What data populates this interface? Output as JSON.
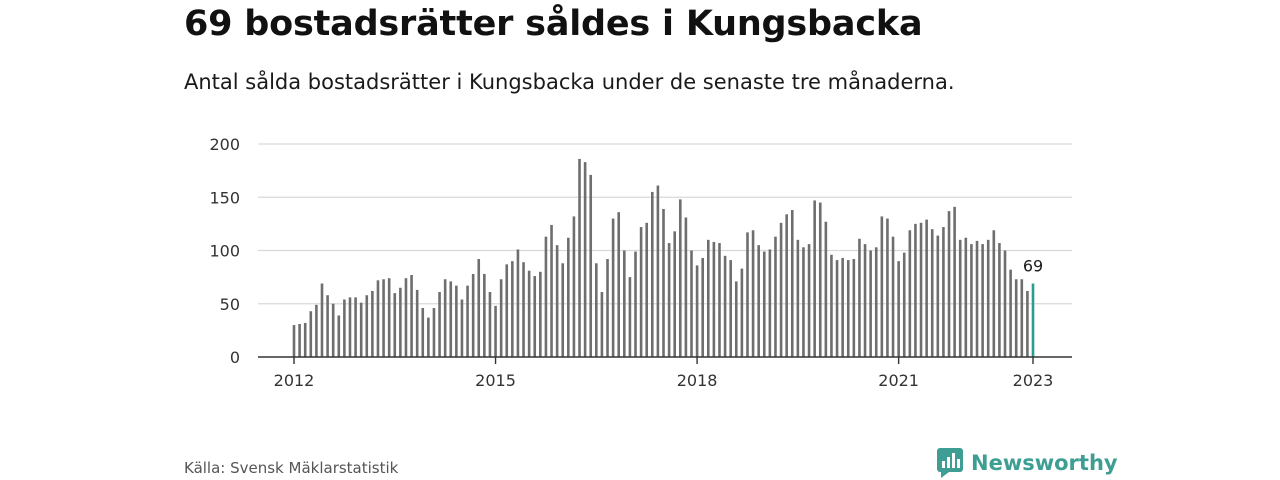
{
  "title": "69 bostadsrätter såldes i Kungsbacka",
  "subtitle": "Antal sålda bostadsrätter i Kungsbacka under de senaste tre månaderna.",
  "source": "Källa: Svensk Mäklarstatistik",
  "brand": {
    "name": "Newsworthy",
    "logo_icon": "newsworthy-chart-bubble-icon"
  },
  "colors": {
    "bar": "#6e6e6e",
    "highlight": "#2a9d8f",
    "grid": "#d9d9d9",
    "axis": "#333333",
    "brand": "#3e9e93"
  },
  "chart_data": {
    "type": "bar",
    "title": "69 bostadsrätter såldes i Kungsbacka",
    "subtitle": "Antal sålda bostadsrätter i Kungsbacka under de senaste tre månaderna.",
    "xlabel": "",
    "ylabel": "",
    "ylim": [
      0,
      200
    ],
    "yticks": [
      0,
      50,
      100,
      150,
      200
    ],
    "xticks": [
      "2012",
      "2015",
      "2018",
      "2021",
      "2023"
    ],
    "xtick_index": [
      0,
      36,
      72,
      108,
      132
    ],
    "x_start": "2012-01",
    "x_end": "2023-01",
    "grid": true,
    "highlight_label": "69",
    "series": [
      {
        "values": [
          30,
          31,
          32,
          43,
          49,
          69,
          58,
          50,
          39,
          54,
          56,
          56,
          51,
          58,
          62,
          72,
          73,
          74,
          60,
          65,
          74,
          77,
          63,
          46,
          37,
          46,
          61,
          73,
          71,
          67,
          54,
          67,
          78,
          92,
          78,
          61,
          48,
          73,
          87,
          90,
          101,
          89,
          81,
          76,
          80,
          113,
          124,
          105,
          88,
          112,
          132,
          186,
          183,
          171,
          88,
          61,
          92,
          130,
          136,
          100,
          75,
          99,
          122,
          126,
          155,
          161,
          139,
          107,
          118,
          148,
          131,
          100,
          86,
          93,
          110,
          108,
          107,
          95,
          91,
          71,
          83,
          117,
          119,
          105,
          99,
          101,
          113,
          126,
          134,
          138,
          110,
          103,
          106,
          147,
          145,
          127,
          96,
          91,
          93,
          91,
          92,
          111,
          106,
          100,
          103,
          132,
          130,
          113,
          90,
          98,
          119,
          125,
          126,
          129,
          120,
          114,
          122,
          137,
          141,
          110,
          112,
          106,
          109,
          106,
          110,
          119,
          107,
          100,
          82,
          73,
          73,
          62,
          69
        ]
      }
    ]
  }
}
